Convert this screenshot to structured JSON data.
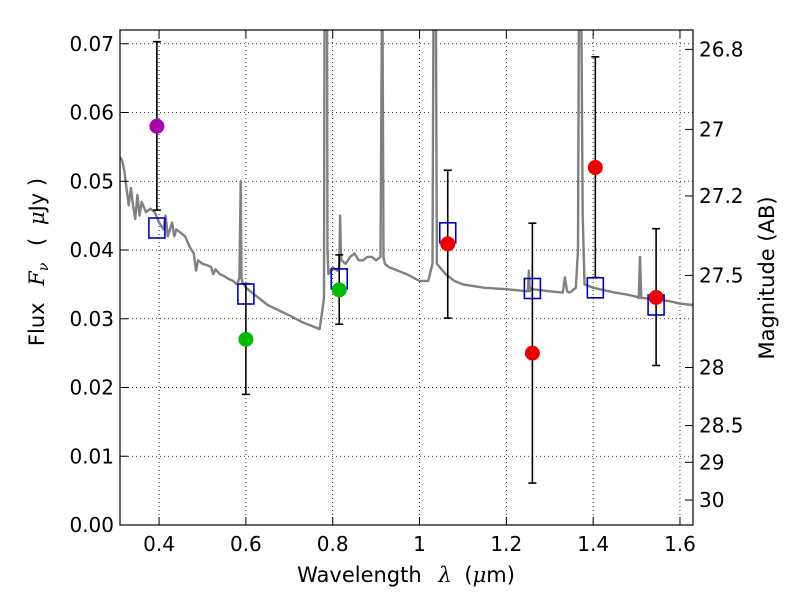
{
  "chart_data": {
    "type": "scatter",
    "xlabel": "Wavelength",
    "xlabel_symbol": "λ",
    "xlabel_unit_left": "(",
    "xlabel_unit_mu": "μ",
    "xlabel_unit_right": "m)",
    "ylabel": "Flux",
    "ylabel_symbol": "F",
    "ylabel_subscript": "ν",
    "ylabel_unit_left": "(",
    "ylabel_unit_mu": "μ",
    "ylabel_unit_right": "Jy )",
    "y2label": "Magnitude (AB)",
    "xlim": [
      0.31,
      1.63
    ],
    "ylim": [
      0.0,
      0.072
    ],
    "x_ticks": [
      0.4,
      0.6,
      0.8,
      1.0,
      1.2,
      1.4,
      1.6
    ],
    "x_tick_labels": [
      "0.4",
      "0.6",
      "0.8",
      "1",
      "1.2",
      "1.4",
      "1.6"
    ],
    "y_ticks": [
      0.0,
      0.01,
      0.02,
      0.03,
      0.04,
      0.05,
      0.06,
      0.07
    ],
    "y_tick_labels": [
      "0.00",
      "0.01",
      "0.02",
      "0.03",
      "0.04",
      "0.05",
      "0.06",
      "0.07"
    ],
    "y2_ticks": [
      26.8,
      27,
      27.2,
      27.5,
      28,
      28.5,
      29,
      30
    ],
    "y2_tick_labels": [
      "26.8",
      "27",
      "27.2",
      "27.5",
      "28",
      "28.5",
      "29",
      "30"
    ],
    "grid": true,
    "colors": {
      "model": "#808080",
      "box": "#0000cc",
      "errorbar": "#000000",
      "purple": "#aa00aa",
      "green": "#00bb00",
      "red": "#ee0000"
    },
    "observed": [
      {
        "x": 0.395,
        "y": 0.058,
        "err_low": 0.0458,
        "err_high": 0.0703,
        "color": "purple"
      },
      {
        "x": 0.6,
        "y": 0.027,
        "err_low": 0.019,
        "err_high": 0.0351,
        "color": "green"
      },
      {
        "x": 0.815,
        "y": 0.0342,
        "err_low": 0.0292,
        "err_high": 0.0393,
        "color": "green"
      },
      {
        "x": 1.065,
        "y": 0.0409,
        "err_low": 0.0301,
        "err_high": 0.0516,
        "color": "red"
      },
      {
        "x": 1.26,
        "y": 0.025,
        "err_low": 0.0061,
        "err_high": 0.0439,
        "color": "red"
      },
      {
        "x": 1.405,
        "y": 0.052,
        "err_low": 0.036,
        "err_high": 0.0681,
        "color": "red"
      },
      {
        "x": 1.545,
        "y": 0.0331,
        "err_low": 0.0232,
        "err_high": 0.0431,
        "color": "red"
      }
    ],
    "model_photometry": [
      {
        "x": 0.395,
        "y": 0.0432
      },
      {
        "x": 0.6,
        "y": 0.0336
      },
      {
        "x": 0.815,
        "y": 0.0358
      },
      {
        "x": 1.065,
        "y": 0.0425
      },
      {
        "x": 1.26,
        "y": 0.0344
      },
      {
        "x": 1.405,
        "y": 0.0345
      },
      {
        "x": 1.545,
        "y": 0.032
      }
    ],
    "model_spectrum": {
      "x": [
        0.31,
        0.315,
        0.32,
        0.325,
        0.33,
        0.335,
        0.34,
        0.345,
        0.35,
        0.355,
        0.36,
        0.37,
        0.38,
        0.39,
        0.4,
        0.41,
        0.415,
        0.42,
        0.43,
        0.435,
        0.44,
        0.45,
        0.46,
        0.47,
        0.48,
        0.485,
        0.49,
        0.5,
        0.51,
        0.52,
        0.525,
        0.53,
        0.54,
        0.55,
        0.56,
        0.57,
        0.58,
        0.585,
        0.588,
        0.59,
        0.592,
        0.595,
        0.6,
        0.62,
        0.65,
        0.7,
        0.73,
        0.75,
        0.77,
        0.78,
        0.781,
        0.783,
        0.785,
        0.787,
        0.788,
        0.79,
        0.8,
        0.81,
        0.815,
        0.817,
        0.819,
        0.82,
        0.83,
        0.84,
        0.85,
        0.86,
        0.87,
        0.88,
        0.89,
        0.9,
        0.91,
        0.913,
        0.915,
        0.917,
        0.92,
        0.93,
        0.95,
        0.97,
        1.0,
        1.02,
        1.03,
        1.032,
        1.034,
        1.036,
        1.038,
        1.04,
        1.06,
        1.08,
        1.1,
        1.15,
        1.2,
        1.25,
        1.252,
        1.254,
        1.256,
        1.26,
        1.3,
        1.33,
        1.335,
        1.34,
        1.345,
        1.35,
        1.36,
        1.365,
        1.367,
        1.37,
        1.373,
        1.376,
        1.38,
        1.4,
        1.45,
        1.48,
        1.5,
        1.505,
        1.508,
        1.511,
        1.515,
        1.55,
        1.58,
        1.6,
        1.63
      ],
      "y": [
        0.0535,
        0.053,
        0.0515,
        0.049,
        0.0465,
        0.049,
        0.0465,
        0.0445,
        0.048,
        0.045,
        0.047,
        0.0455,
        0.046,
        0.0455,
        0.044,
        0.043,
        0.045,
        0.042,
        0.044,
        0.042,
        0.043,
        0.0425,
        0.042,
        0.0405,
        0.0395,
        0.037,
        0.0385,
        0.038,
        0.0378,
        0.0375,
        0.0365,
        0.0372,
        0.0365,
        0.0362,
        0.0358,
        0.0355,
        0.035,
        0.036,
        0.05,
        0.036,
        0.0352,
        0.035,
        0.0345,
        0.0335,
        0.032,
        0.0305,
        0.0295,
        0.029,
        0.0285,
        0.033,
        0.072,
        0.072,
        0.072,
        0.072,
        0.04,
        0.0365,
        0.0375,
        0.037,
        0.0375,
        0.045,
        0.039,
        0.0385,
        0.038,
        0.039,
        0.0395,
        0.0385,
        0.0385,
        0.039,
        0.039,
        0.0385,
        0.039,
        0.072,
        0.072,
        0.039,
        0.038,
        0.0375,
        0.037,
        0.0365,
        0.0355,
        0.0355,
        0.038,
        0.072,
        0.072,
        0.072,
        0.072,
        0.038,
        0.0365,
        0.0355,
        0.035,
        0.0345,
        0.0343,
        0.034,
        0.037,
        0.034,
        0.0345,
        0.0343,
        0.034,
        0.0338,
        0.036,
        0.034,
        0.0338,
        0.034,
        0.0345,
        0.04,
        0.072,
        0.072,
        0.072,
        0.045,
        0.035,
        0.0345,
        0.0338,
        0.0335,
        0.0332,
        0.033,
        0.039,
        0.033,
        0.033,
        0.0328,
        0.0325,
        0.0322,
        0.032
      ]
    }
  }
}
